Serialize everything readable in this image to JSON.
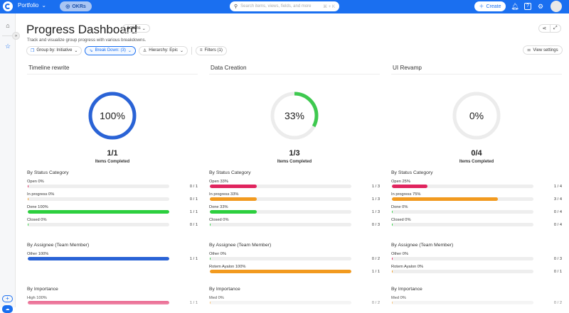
{
  "topbar": {
    "app_name": "Portfolio",
    "okr_label": "OKRs",
    "search_placeholder": "Search items, views, fields, and more",
    "search_shortcut": "⌘ + K",
    "create_label": "Create"
  },
  "page": {
    "title": "Progress Dashboard",
    "actions_label": "Actions",
    "subtitle": "Track and visualize group progress with various breakdowns."
  },
  "filters": {
    "group_by": "Group by: Initiative",
    "break_down": "Break Down: (3)",
    "hierarchy": "Hierarchy: Epic",
    "filters": "Filters (1)",
    "view_settings": "View settings"
  },
  "colors": {
    "brand": "#1a6ff0",
    "open": "#e0245e",
    "in_progress": "#f29a1f",
    "done": "#2ccf3e",
    "closed": "#2ccf3e",
    "assignee_other": "#2a63d6",
    "assignee_rotem": "#f29a1f",
    "importance_high": "#e0245e",
    "importance_med": "#f29a1f",
    "donut_track": "#ececec"
  },
  "groups": [
    {
      "name": "Timeline rewrite",
      "percent": 100,
      "percent_label": "100%",
      "donut_color": "#2a63d6",
      "fraction": "1/1",
      "items_label": "Items Completed",
      "status": {
        "title": "By Status Category",
        "rows": [
          {
            "label": "Open  0%",
            "pct": 0,
            "count": "0 / 1",
            "color": "#e0245e"
          },
          {
            "label": "In progress  0%",
            "pct": 0,
            "count": "0 / 1",
            "color": "#f29a1f"
          },
          {
            "label": "Done  100%",
            "pct": 100,
            "count": "1 / 1",
            "color": "#2ccf3e"
          },
          {
            "label": "Closed  0%",
            "pct": 0,
            "count": "0 / 1",
            "color": "#2ccf3e"
          }
        ]
      },
      "assignee": {
        "title": "By Assignee (Team Member)",
        "rows": [
          {
            "label": "Other  100%",
            "pct": 100,
            "count": "1 / 1",
            "color": "#2a63d6"
          }
        ]
      },
      "importance": {
        "title": "By Importance",
        "rows": [
          {
            "label": "High  100%",
            "pct": 100,
            "count": "1 / 1",
            "color": "#e0245e"
          }
        ]
      }
    },
    {
      "name": "Data Creation",
      "percent": 33,
      "percent_label": "33%",
      "donut_color": "#3ec94f",
      "fraction": "1/3",
      "items_label": "Items Completed",
      "status": {
        "title": "By Status Category",
        "rows": [
          {
            "label": "Open  33%",
            "pct": 33,
            "count": "1 / 3",
            "color": "#e0245e"
          },
          {
            "label": "In progress  33%",
            "pct": 33,
            "count": "1 / 3",
            "color": "#f29a1f"
          },
          {
            "label": "Done  33%",
            "pct": 33,
            "count": "1 / 3",
            "color": "#2ccf3e"
          },
          {
            "label": "Closed  0%",
            "pct": 0,
            "count": "0 / 3",
            "color": "#2ccf3e"
          }
        ]
      },
      "assignee": {
        "title": "By Assignee (Team Member)",
        "rows": [
          {
            "label": "Other  0%",
            "pct": 0,
            "count": "0 / 2",
            "color": "#2ccf3e"
          },
          {
            "label": "Rotem Ayalon  100%",
            "pct": 100,
            "count": "1 / 1",
            "color": "#f29a1f"
          }
        ]
      },
      "importance": {
        "title": "By Importance",
        "rows": [
          {
            "label": "Med  0%",
            "pct": 0,
            "count": "0 / 2",
            "color": "#f29a1f"
          }
        ]
      }
    },
    {
      "name": "UI Revamp",
      "percent": 0,
      "percent_label": "0%",
      "donut_color": "#3ec94f",
      "fraction": "0/4",
      "items_label": "Items Completed",
      "status": {
        "title": "By Status Category",
        "rows": [
          {
            "label": "Open  25%",
            "pct": 25,
            "count": "1 / 4",
            "color": "#e0245e"
          },
          {
            "label": "In progress  75%",
            "pct": 75,
            "count": "3 / 4",
            "color": "#f29a1f"
          },
          {
            "label": "Done  0%",
            "pct": 0,
            "count": "0 / 4",
            "color": "#2ccf3e"
          },
          {
            "label": "Closed  0%",
            "pct": 0,
            "count": "0 / 4",
            "color": "#2ccf3e"
          }
        ]
      },
      "assignee": {
        "title": "By Assignee (Team Member)",
        "rows": [
          {
            "label": "Other  0%",
            "pct": 0,
            "count": "0 / 3",
            "color": "#e0245e"
          },
          {
            "label": "Rotem Ayalon  0%",
            "pct": 0,
            "count": "0 / 1",
            "color": "#f29a1f"
          }
        ]
      },
      "importance": {
        "title": "By Importance",
        "rows": [
          {
            "label": "Med  0%",
            "pct": 0,
            "count": "0 / 2",
            "color": "#f29a1f"
          }
        ]
      }
    }
  ]
}
